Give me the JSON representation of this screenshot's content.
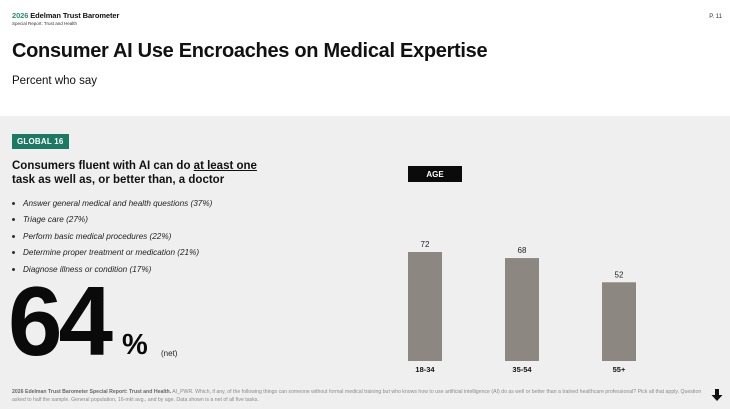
{
  "header": {
    "brand_year": "2026",
    "brand_name": "Edelman Trust Barometer",
    "report": "Special Report: Trust and Health",
    "page": "P. 11"
  },
  "title": "Consumer AI Use Encroaches on Medical Expertise",
  "subtitle": "Percent who say",
  "badge": "GLOBAL 16",
  "lead": {
    "part1": "Consumers fluent with AI can do ",
    "underlined": "at least one",
    "part2": " task as well as, or better than, a doctor"
  },
  "bullets": [
    "Answer general medical and health questions (37%)",
    "Triage care (27%)",
    "Perform basic medical procedures (22%)",
    "Determine proper treatment or medication (21%)",
    "Diagnose illness or condition (17%)"
  ],
  "headline": {
    "number": "64",
    "unit": "%",
    "qualifier": "(net)"
  },
  "footer": {
    "source": "2026 Edelman Trust Barometer Special Report: Trust and Health.",
    "note": " AI_PWR. Which, if any, of the following things can someone without formal medical training but who knows how to use artificial intelligence (AI) do as well or better than a trained healthcare professional? Pick all that apply. Question asked to half the sample. General population, 16-mkt avg., and by age. Data shown is a net of all five tasks."
  },
  "colors": {
    "accent": "#1c7a63",
    "bar": "#8d8782",
    "panel": "#efefef"
  },
  "chart_data": {
    "type": "bar",
    "title": "AGE",
    "categories": [
      "18-34",
      "35-54",
      "55+"
    ],
    "values": [
      72,
      68,
      52
    ],
    "ylim": [
      0,
      72
    ],
    "grid": false,
    "data_labels": true
  }
}
